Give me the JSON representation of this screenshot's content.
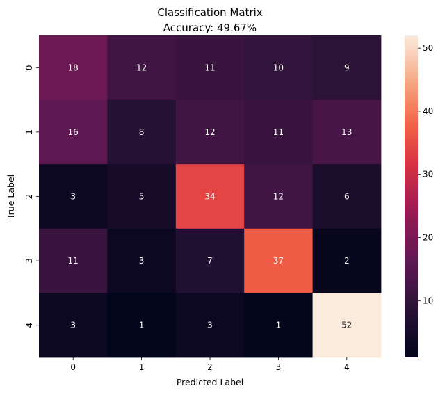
{
  "chart_data": {
    "type": "heatmap",
    "title": "Classification Matrix",
    "subtitle": "Accuracy: 49.67%",
    "xlabel": "Predicted Label",
    "ylabel": "True Label",
    "x_categories": [
      "0",
      "1",
      "2",
      "3",
      "4"
    ],
    "y_categories": [
      "0",
      "1",
      "2",
      "3",
      "4"
    ],
    "values": [
      [
        18,
        12,
        11,
        10,
        9
      ],
      [
        16,
        8,
        12,
        11,
        13
      ],
      [
        3,
        5,
        34,
        12,
        6
      ],
      [
        11,
        3,
        7,
        37,
        2
      ],
      [
        3,
        1,
        3,
        1,
        52
      ]
    ],
    "colorbar": {
      "range": [
        1,
        52
      ],
      "ticks": [
        10,
        20,
        30,
        40,
        50
      ],
      "colormap": "rocket"
    },
    "annotations": true,
    "grid": false
  }
}
